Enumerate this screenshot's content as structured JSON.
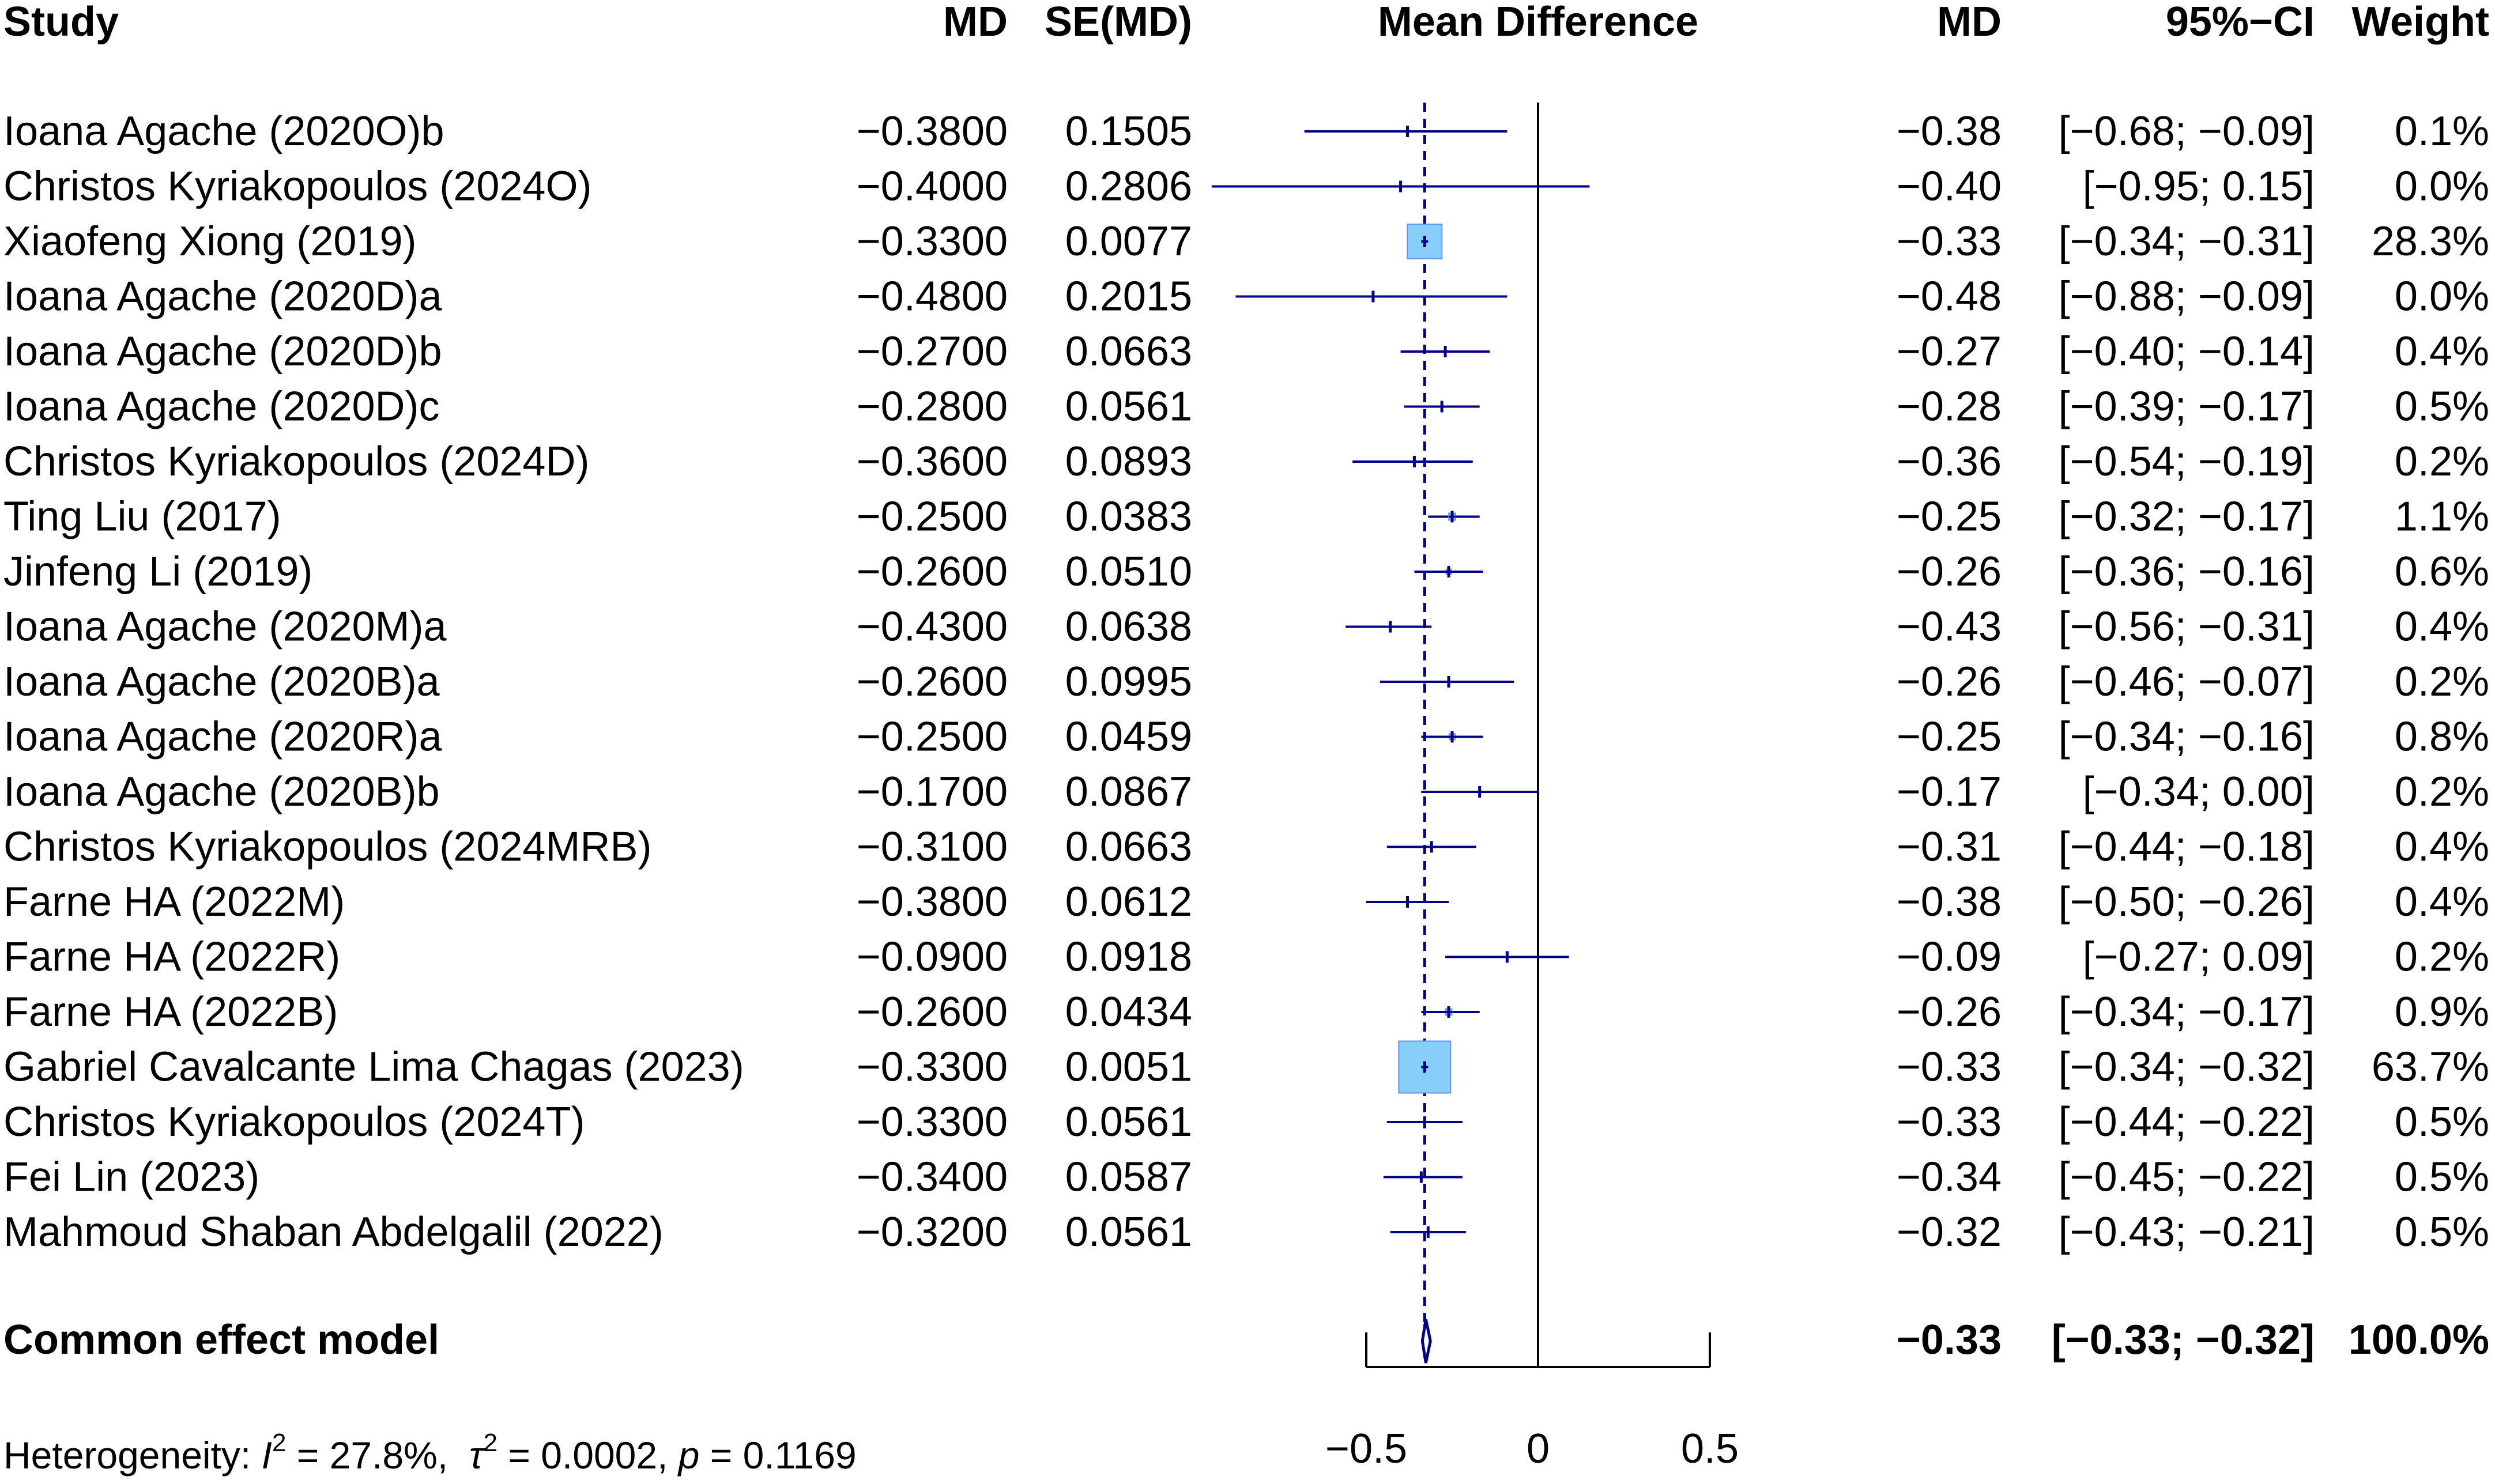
{
  "headers": {
    "study": "Study",
    "md": "MD",
    "se": "SE(MD)",
    "plot": "Mean Difference",
    "md2": "MD",
    "ci": "95%−CI",
    "weight": "Weight"
  },
  "colors": {
    "line": "#00008B",
    "box": "#87CEFA",
    "box_edge": "#6495ED",
    "text": "#000000"
  },
  "chart_data": {
    "type": "forest",
    "title": "Mean Difference",
    "xlim": [
      -0.5,
      0.5
    ],
    "xticks": [
      -0.5,
      0,
      0.5
    ],
    "xtick_labels": [
      "−0.5",
      "0",
      "0.5"
    ],
    "reference_line": 0,
    "common_effect_line": -0.33,
    "studies": [
      {
        "name": "Ioana Agache (2020O)b",
        "md": -0.38,
        "se": 0.1505,
        "lo": -0.68,
        "hi": -0.09,
        "weight": 0.1,
        "md_text": "−0.3800",
        "se_text": "0.1505",
        "md2_text": "−0.38",
        "ci_text": "[−0.68; −0.09]",
        "weight_text": "0.1%"
      },
      {
        "name": "Christos Kyriakopoulos (2024O)",
        "md": -0.4,
        "se": 0.2806,
        "lo": -0.95,
        "hi": 0.15,
        "weight": 0.0,
        "md_text": "−0.4000",
        "se_text": "0.2806",
        "md2_text": "−0.40",
        "ci_text": "[−0.95;  0.15]",
        "weight_text": "0.0%"
      },
      {
        "name": "Xiaofeng Xiong (2019)",
        "md": -0.33,
        "se": 0.0077,
        "lo": -0.34,
        "hi": -0.31,
        "weight": 28.3,
        "md_text": "−0.3300",
        "se_text": "0.0077",
        "md2_text": "−0.33",
        "ci_text": "[−0.34; −0.31]",
        "weight_text": "28.3%"
      },
      {
        "name": "Ioana Agache (2020D)a",
        "md": -0.48,
        "se": 0.2015,
        "lo": -0.88,
        "hi": -0.09,
        "weight": 0.0,
        "md_text": "−0.4800",
        "se_text": "0.2015",
        "md2_text": "−0.48",
        "ci_text": "[−0.88; −0.09]",
        "weight_text": "0.0%"
      },
      {
        "name": "Ioana Agache (2020D)b",
        "md": -0.27,
        "se": 0.0663,
        "lo": -0.4,
        "hi": -0.14,
        "weight": 0.4,
        "md_text": "−0.2700",
        "se_text": "0.0663",
        "md2_text": "−0.27",
        "ci_text": "[−0.40; −0.14]",
        "weight_text": "0.4%"
      },
      {
        "name": "Ioana Agache (2020D)c",
        "md": -0.28,
        "se": 0.0561,
        "lo": -0.39,
        "hi": -0.17,
        "weight": 0.5,
        "md_text": "−0.2800",
        "se_text": "0.0561",
        "md2_text": "−0.28",
        "ci_text": "[−0.39; −0.17]",
        "weight_text": "0.5%"
      },
      {
        "name": "Christos Kyriakopoulos (2024D)",
        "md": -0.36,
        "se": 0.0893,
        "lo": -0.54,
        "hi": -0.19,
        "weight": 0.2,
        "md_text": "−0.3600",
        "se_text": "0.0893",
        "md2_text": "−0.36",
        "ci_text": "[−0.54; −0.19]",
        "weight_text": "0.2%"
      },
      {
        "name": "Ting Liu (2017)",
        "md": -0.25,
        "se": 0.0383,
        "lo": -0.32,
        "hi": -0.17,
        "weight": 1.1,
        "md_text": "−0.2500",
        "se_text": "0.0383",
        "md2_text": "−0.25",
        "ci_text": "[−0.32; −0.17]",
        "weight_text": "1.1%"
      },
      {
        "name": "Jinfeng Li (2019)",
        "md": -0.26,
        "se": 0.051,
        "lo": -0.36,
        "hi": -0.16,
        "weight": 0.6,
        "md_text": "−0.2600",
        "se_text": "0.0510",
        "md2_text": "−0.26",
        "ci_text": "[−0.36; −0.16]",
        "weight_text": "0.6%"
      },
      {
        "name": "Ioana Agache (2020M)a",
        "md": -0.43,
        "se": 0.0638,
        "lo": -0.56,
        "hi": -0.31,
        "weight": 0.4,
        "md_text": "−0.4300",
        "se_text": "0.0638",
        "md2_text": "−0.43",
        "ci_text": "[−0.56; −0.31]",
        "weight_text": "0.4%"
      },
      {
        "name": "Ioana Agache (2020B)a",
        "md": -0.26,
        "se": 0.0995,
        "lo": -0.46,
        "hi": -0.07,
        "weight": 0.2,
        "md_text": "−0.2600",
        "se_text": "0.0995",
        "md2_text": "−0.26",
        "ci_text": "[−0.46; −0.07]",
        "weight_text": "0.2%"
      },
      {
        "name": "Ioana Agache (2020R)a",
        "md": -0.25,
        "se": 0.0459,
        "lo": -0.34,
        "hi": -0.16,
        "weight": 0.8,
        "md_text": "−0.2500",
        "se_text": "0.0459",
        "md2_text": "−0.25",
        "ci_text": "[−0.34; −0.16]",
        "weight_text": "0.8%"
      },
      {
        "name": "Ioana Agache (2020B)b",
        "md": -0.17,
        "se": 0.0867,
        "lo": -0.34,
        "hi": 0.0,
        "weight": 0.2,
        "md_text": "−0.1700",
        "se_text": "0.0867",
        "md2_text": "−0.17",
        "ci_text": "[−0.34;  0.00]",
        "weight_text": "0.2%"
      },
      {
        "name": "Christos Kyriakopoulos (2024MRB)",
        "md": -0.31,
        "se": 0.0663,
        "lo": -0.44,
        "hi": -0.18,
        "weight": 0.4,
        "md_text": "−0.3100",
        "se_text": "0.0663",
        "md2_text": "−0.31",
        "ci_text": "[−0.44; −0.18]",
        "weight_text": "0.4%"
      },
      {
        "name": "Farne HA (2022M)",
        "md": -0.38,
        "se": 0.0612,
        "lo": -0.5,
        "hi": -0.26,
        "weight": 0.4,
        "md_text": "−0.3800",
        "se_text": "0.0612",
        "md2_text": "−0.38",
        "ci_text": "[−0.50; −0.26]",
        "weight_text": "0.4%"
      },
      {
        "name": "Farne HA (2022R)",
        "md": -0.09,
        "se": 0.0918,
        "lo": -0.27,
        "hi": 0.09,
        "weight": 0.2,
        "md_text": "−0.0900",
        "se_text": "0.0918",
        "md2_text": "−0.09",
        "ci_text": "[−0.27;  0.09]",
        "weight_text": "0.2%"
      },
      {
        "name": "Farne HA (2022B)",
        "md": -0.26,
        "se": 0.0434,
        "lo": -0.34,
        "hi": -0.17,
        "weight": 0.9,
        "md_text": "−0.2600",
        "se_text": "0.0434",
        "md2_text": "−0.26",
        "ci_text": "[−0.34; −0.17]",
        "weight_text": "0.9%"
      },
      {
        "name": "Gabriel Cavalcante Lima Chagas (2023)",
        "md": -0.33,
        "se": 0.0051,
        "lo": -0.34,
        "hi": -0.32,
        "weight": 63.7,
        "md_text": "−0.3300",
        "se_text": "0.0051",
        "md2_text": "−0.33",
        "ci_text": "[−0.34; −0.32]",
        "weight_text": "63.7%"
      },
      {
        "name": "Christos Kyriakopoulos (2024T)",
        "md": -0.33,
        "se": 0.0561,
        "lo": -0.44,
        "hi": -0.22,
        "weight": 0.5,
        "md_text": "−0.3300",
        "se_text": "0.0561",
        "md2_text": "−0.33",
        "ci_text": "[−0.44; −0.22]",
        "weight_text": "0.5%"
      },
      {
        "name": "Fei Lin (2023)",
        "md": -0.34,
        "se": 0.0587,
        "lo": -0.45,
        "hi": -0.22,
        "weight": 0.5,
        "md_text": "−0.3400",
        "se_text": "0.0587",
        "md2_text": "−0.34",
        "ci_text": "[−0.45; −0.22]",
        "weight_text": "0.5%"
      },
      {
        "name": "Mahmoud Shaban Abdelgalil (2022)",
        "md": -0.32,
        "se": 0.0561,
        "lo": -0.43,
        "hi": -0.21,
        "weight": 0.5,
        "md_text": "−0.3200",
        "se_text": "0.0561",
        "md2_text": "−0.32",
        "ci_text": "[−0.43; −0.21]",
        "weight_text": "0.5%"
      }
    ],
    "pooled": {
      "label": "Common effect model",
      "md": -0.33,
      "lo": -0.33,
      "hi": -0.32,
      "weight": 100.0,
      "md_text": "−0.33",
      "ci_text": "[−0.33; −0.32]",
      "weight_text": "100.0%"
    },
    "heterogeneity": {
      "label": "Heterogeneity: ",
      "i2_symbol": "I",
      "i2_sup": "2",
      "i2_value": " = 27.8%,  ",
      "tau_symbol": "τ",
      "tau_sup": "2",
      "tau_value": " = 0.0002, ",
      "p_symbol": "p",
      "p_value": " = 0.1169"
    }
  }
}
